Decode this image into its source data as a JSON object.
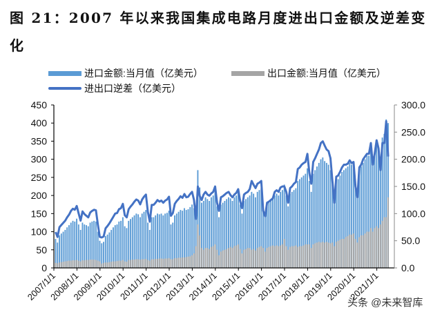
{
  "title": "图 21：2007 年以来我国集成电路月度进出口金额及逆差变化",
  "watermark": "头条 @未来智库",
  "chart_data": {
    "type": "bar+line",
    "x_start": "2007/1",
    "x_end": "2021/6",
    "frequency": "monthly",
    "x_tick_labels": [
      "2007/1/1",
      "2008/1/1",
      "2009/1/1",
      "2010/1/1",
      "2011/1/1",
      "2012/1/1",
      "2013/1/1",
      "2014/1/1",
      "2015/1/1",
      "2016/1/1",
      "2017/1/1",
      "2018/1/1",
      "2019/1/1",
      "2020/1/1",
      "2021/1/1"
    ],
    "y_left": {
      "range": [
        0,
        450
      ],
      "ticks": [
        "0",
        "50",
        "100",
        "150",
        "200",
        "250",
        "300",
        "350",
        "400",
        "450"
      ]
    },
    "y_right": {
      "range": [
        0,
        300
      ],
      "ticks": [
        "0.0",
        "50.0",
        "100.0",
        "150.0",
        "200.0",
        "250.0",
        "300.0"
      ]
    },
    "legend_position": "top",
    "grid": false,
    "colors": {
      "imports": "#5B9BD5",
      "exports": "#A5A5A5",
      "deficit": "#4472C4"
    },
    "series": [
      {
        "name": "进口金额:当月值（亿美元）",
        "axis": "left",
        "type": "bar",
        "values": [
          80,
          70,
          90,
          95,
          100,
          105,
          112,
          118,
          125,
          130,
          128,
          136,
          120,
          105,
          125,
          120,
          118,
          115,
          125,
          128,
          130,
          128,
          100,
          75,
          68,
          72,
          88,
          92,
          98,
          105,
          112,
          118,
          120,
          128,
          130,
          140,
          115,
          110,
          130,
          135,
          140,
          145,
          150,
          148,
          140,
          150,
          155,
          160,
          125,
          105,
          140,
          140,
          145,
          150,
          148,
          150,
          145,
          150,
          152,
          158,
          120,
          125,
          145,
          150,
          155,
          160,
          158,
          165,
          160,
          162,
          168,
          175,
          165,
          150,
          270,
          222,
          180,
          185,
          195,
          190,
          185,
          195,
          200,
          215,
          170,
          140,
          175,
          180,
          185,
          190,
          195,
          192,
          185,
          195,
          200,
          210,
          175,
          150,
          185,
          190,
          195,
          200,
          210,
          205,
          195,
          210,
          215,
          220,
          160,
          140,
          175,
          180,
          185,
          190,
          200,
          205,
          200,
          210,
          215,
          230,
          200,
          170,
          205,
          210,
          215,
          220,
          240,
          245,
          250,
          255,
          260,
          275,
          240,
          210,
          260,
          270,
          280,
          290,
          300,
          305,
          295,
          290,
          285,
          270,
          230,
          180,
          240,
          245,
          255,
          265,
          270,
          275,
          280,
          290,
          285,
          290,
          230,
          200,
          270,
          280,
          290,
          300,
          310,
          310,
          340,
          290,
          320,
          350,
          330,
          300,
          360,
          370,
          410,
          400
        ]
      },
      {
        "name": "出口金额:当月值（亿美元）",
        "axis": "left",
        "type": "bar",
        "values": [
          14,
          13,
          15,
          16,
          17,
          18,
          19,
          20,
          20,
          21,
          21,
          22,
          20,
          18,
          21,
          21,
          22,
          22,
          23,
          23,
          23,
          22,
          20,
          18,
          12,
          14,
          15,
          15,
          16,
          17,
          18,
          18,
          19,
          20,
          20,
          22,
          18,
          17,
          22,
          22,
          23,
          23,
          24,
          24,
          23,
          24,
          24,
          25,
          22,
          20,
          24,
          24,
          25,
          25,
          26,
          26,
          25,
          26,
          26,
          27,
          24,
          24,
          27,
          27,
          28,
          28,
          29,
          29,
          30,
          31,
          32,
          35,
          40,
          60,
          120,
          90,
          55,
          50,
          55,
          55,
          52,
          58,
          60,
          65,
          50,
          35,
          45,
          48,
          50,
          52,
          55,
          58,
          55,
          60,
          62,
          65,
          52,
          40,
          50,
          52,
          55,
          55,
          50,
          52,
          48,
          55,
          58,
          60,
          55,
          45,
          55,
          58,
          60,
          62,
          60,
          62,
          60,
          62,
          65,
          80,
          60,
          50,
          58,
          60,
          60,
          62,
          58,
          60,
          60,
          62,
          65,
          65,
          65,
          55,
          65,
          68,
          70,
          72,
          70,
          72,
          70,
          72,
          70,
          68,
          70,
          60,
          72,
          75,
          78,
          80,
          80,
          85,
          88,
          92,
          92,
          95,
          80,
          70,
          85,
          90,
          90,
          95,
          100,
          100,
          110,
          100,
          110,
          115,
          110,
          120,
          130,
          140,
          140,
          195
        ]
      },
      {
        "name": "进出口逆差（亿美元）",
        "axis": "right",
        "type": "line",
        "values": [
          66,
          57,
          75,
          79,
          83,
          87,
          93,
          98,
          105,
          109,
          107,
          114,
          100,
          87,
          104,
          99,
          96,
          93,
          102,
          105,
          107,
          106,
          80,
          57,
          56,
          58,
          73,
          77,
          82,
          88,
          94,
          100,
          101,
          108,
          110,
          118,
          97,
          93,
          108,
          113,
          117,
          122,
          126,
          124,
          117,
          126,
          131,
          135,
          103,
          85,
          116,
          116,
          120,
          125,
          122,
          124,
          120,
          124,
          126,
          131,
          96,
          101,
          118,
          123,
          127,
          132,
          129,
          136,
          130,
          131,
          136,
          140,
          125,
          90,
          150,
          132,
          125,
          135,
          140,
          135,
          133,
          137,
          140,
          150,
          120,
          105,
          130,
          132,
          135,
          138,
          140,
          134,
          130,
          135,
          138,
          145,
          123,
          110,
          135,
          138,
          140,
          145,
          160,
          153,
          147,
          155,
          157,
          160,
          105,
          95,
          120,
          122,
          125,
          128,
          140,
          143,
          140,
          148,
          150,
          150,
          140,
          120,
          147,
          150,
          155,
          158,
          182,
          185,
          190,
          193,
          195,
          210,
          175,
          155,
          195,
          202,
          210,
          218,
          230,
          233,
          225,
          218,
          215,
          202,
          160,
          120,
          168,
          170,
          177,
          185,
          190,
          190,
          192,
          198,
          193,
          195,
          150,
          130,
          185,
          190,
          200,
          205,
          210,
          210,
          230,
          190,
          210,
          235,
          220,
          180,
          230,
          230,
          270,
          205
        ]
      }
    ]
  }
}
